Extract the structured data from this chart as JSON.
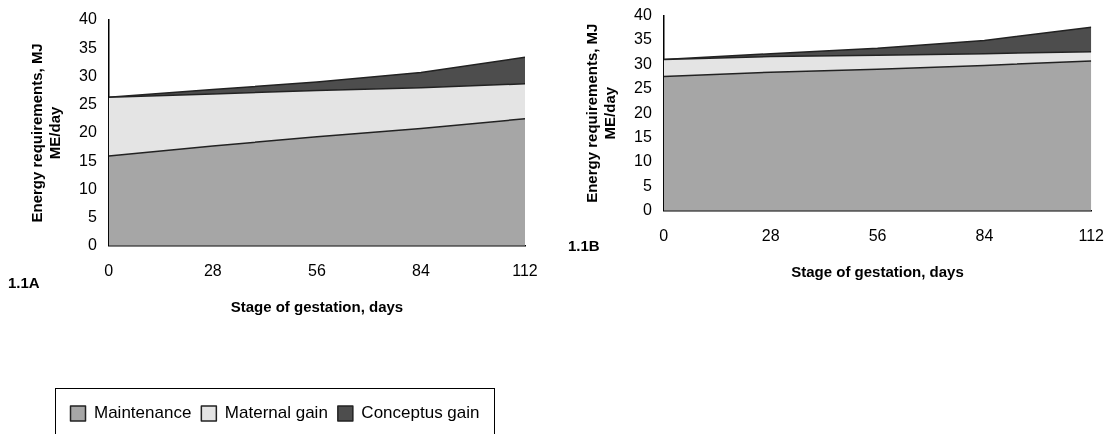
{
  "chart_data": [
    {
      "type": "area",
      "stacked": true,
      "xlabel": "Stage of gestation, days",
      "ylabel": "Energy requirements, MJ ME/day",
      "annotations": [
        "1.1A"
      ],
      "x": [
        0,
        28,
        56,
        84,
        112
      ],
      "xlim": [
        0,
        112
      ],
      "xticks": [
        0,
        28,
        56,
        84,
        112
      ],
      "ylim": [
        0,
        40
      ],
      "yticks": [
        0,
        5,
        10,
        15,
        20,
        25,
        30,
        35,
        40
      ],
      "legend": "bottom",
      "series": [
        {
          "name": "Maintenance",
          "color": "#a6a6a6",
          "values": [
            15.9,
            17.7,
            19.3,
            20.8,
            22.5
          ]
        },
        {
          "name": "Maternal gain",
          "color": "#e4e4e4",
          "values": [
            10.4,
            9.2,
            8.2,
            7.2,
            6.2
          ]
        },
        {
          "name": "Conceptus gain",
          "color": "#4d4d4d",
          "values": [
            0,
            0.8,
            1.5,
            2.7,
            4.7
          ]
        }
      ]
    },
    {
      "type": "area",
      "stacked": true,
      "xlabel": "Stage of gestation, days",
      "ylabel": "Energy requirements, MJ ME/day",
      "annotations": [
        "1.1B"
      ],
      "x": [
        0,
        28,
        56,
        84,
        112
      ],
      "xlim": [
        0,
        112
      ],
      "xticks": [
        0,
        28,
        56,
        84,
        112
      ],
      "ylim": [
        0,
        40
      ],
      "yticks": [
        0,
        5,
        10,
        15,
        20,
        25,
        30,
        35,
        40
      ],
      "series": [
        {
          "color": "#a6a6a6",
          "values": [
            27.5,
            28.4,
            29.0,
            29.8,
            30.7
          ]
        },
        {
          "color": "#e4e4e4",
          "values": [
            3.5,
            3.2,
            2.9,
            2.4,
            1.9
          ]
        },
        {
          "color": "#4d4d4d",
          "values": [
            0,
            0.6,
            1.4,
            2.7,
            5.0
          ]
        }
      ]
    }
  ]
}
